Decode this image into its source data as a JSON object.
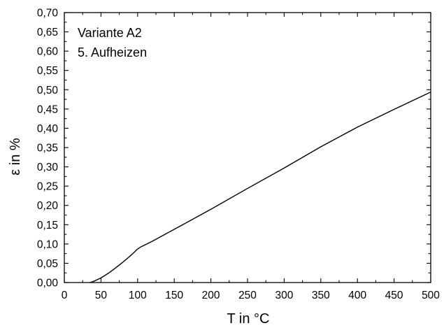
{
  "chart_data": {
    "type": "line",
    "xlabel": "T in °C",
    "ylabel": "ε in %",
    "xlim": [
      0,
      500
    ],
    "ylim": [
      0,
      0.7
    ],
    "xticks": [
      0,
      50,
      100,
      150,
      200,
      250,
      300,
      350,
      400,
      450,
      500
    ],
    "xtick_labels": [
      "0",
      "50",
      "100",
      "150",
      "200",
      "250",
      "300",
      "350",
      "400",
      "450",
      "500"
    ],
    "yticks": [
      0,
      0.05,
      0.1,
      0.15,
      0.2,
      0.25,
      0.3,
      0.35,
      0.4,
      0.45,
      0.5,
      0.55,
      0.6,
      0.65,
      0.7
    ],
    "ytick_labels": [
      "0,00",
      "0,05",
      "0,10",
      "0,15",
      "0,20",
      "0,25",
      "0,30",
      "0,35",
      "0,40",
      "0,45",
      "0,50",
      "0,55",
      "0,60",
      "0,65",
      "0,70"
    ],
    "grid": false,
    "annotations": [
      "Variante A2",
      "5. Aufheizen"
    ],
    "series": [
      {
        "color": "#000000",
        "x": [
          35,
          40,
          50,
          60,
          70,
          80,
          90,
          100,
          105,
          120,
          150,
          200,
          250,
          300,
          350,
          400,
          450,
          500
        ],
        "y": [
          0.0,
          0.003,
          0.012,
          0.024,
          0.038,
          0.053,
          0.069,
          0.087,
          0.093,
          0.107,
          0.138,
          0.19,
          0.244,
          0.297,
          0.352,
          0.403,
          0.449,
          0.494
        ]
      }
    ]
  }
}
